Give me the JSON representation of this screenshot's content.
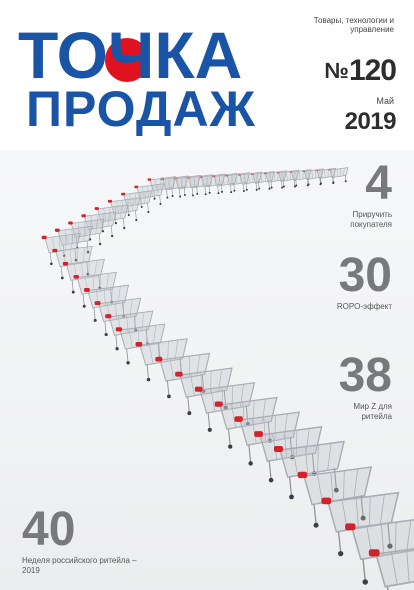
{
  "logo": {
    "line1": "ТОЧКА",
    "line2": "ПРОДАЖ",
    "brand_color": "#1a54a6",
    "dot_color": "#e0121f"
  },
  "masthead": {
    "tagline": "Товары, технологии и управление",
    "issue_prefix": "№",
    "issue_number": "120",
    "month": "Май",
    "year": "2019"
  },
  "cover_stories": [
    {
      "page": "4",
      "caption": "Приручить покупателя"
    },
    {
      "page": "30",
      "caption": "ROPO-эффект"
    },
    {
      "page": "38",
      "caption": "Мир Z для ритейла"
    },
    {
      "page": "40",
      "caption": "Неделя российского ритейла – 2019"
    }
  ],
  "photo": {
    "subject": "shopping-carts-icon",
    "cart_color": "#a8adb3",
    "handle_color": "#d2232a"
  }
}
